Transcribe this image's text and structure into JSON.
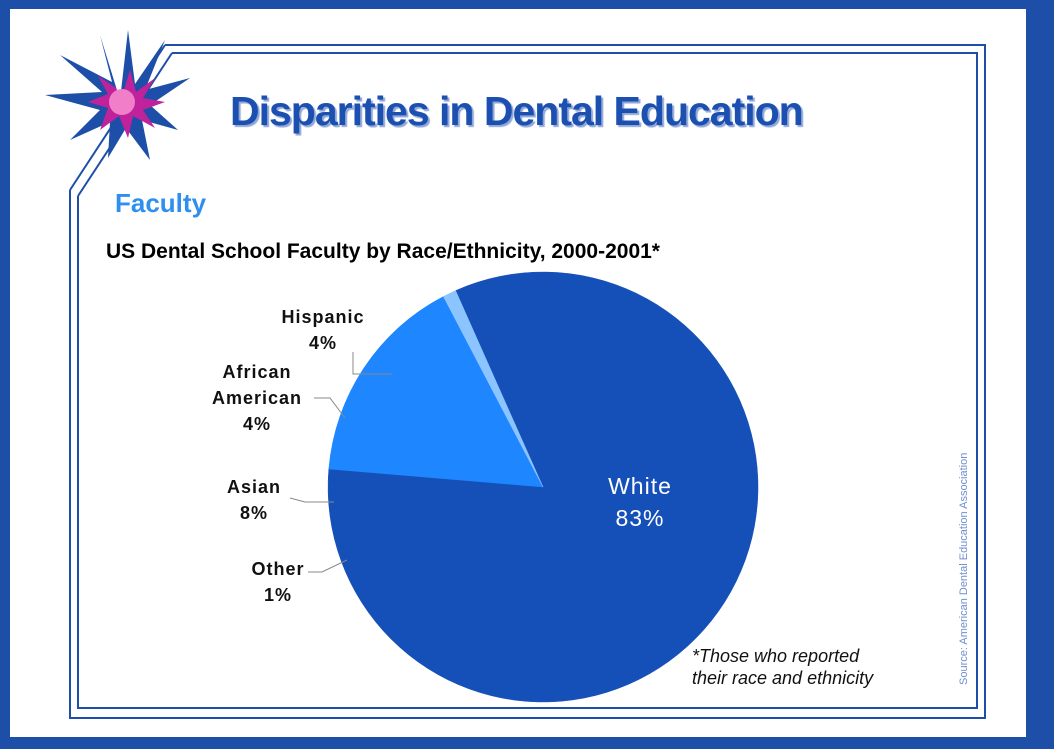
{
  "slide": {
    "title": "Disparities in Dental Education",
    "subtitle": "Faculty",
    "footnote_line1": "*Those who reported",
    "footnote_line2": "their race and ethnicity",
    "source": "Source: American Dental Education Association"
  },
  "colors": {
    "frame": "#1d4fa8",
    "title": "#1b4fb0",
    "subtitle": "#2f8ff0",
    "white_slice": "#1550b8",
    "asian_slice": "#1e86ff",
    "other_slice": "#8cc4ff"
  },
  "chart_data": {
    "type": "pie",
    "title": "US Dental School Faculty by Race/Ethnicity, 2000-2001*",
    "slices": [
      {
        "label": "White",
        "value": 83,
        "text": "83%",
        "color": "#1550b8"
      },
      {
        "label": "Hispanic",
        "value": 4,
        "text": "4%",
        "color": "#1e86ff"
      },
      {
        "label": "African American",
        "value": 4,
        "text": "4%",
        "color": "#1e86ff"
      },
      {
        "label": "Asian",
        "value": 8,
        "text": "8%",
        "color": "#1e86ff"
      },
      {
        "label": "Other",
        "value": 1,
        "text": "1%",
        "color": "#8cc4ff"
      }
    ],
    "labels": {
      "hispanic_name": "Hispanic",
      "hispanic_pct": "4%",
      "african_line1": "African",
      "african_line2": "American",
      "african_pct": "4%",
      "asian_name": "Asian",
      "asian_pct": "8%",
      "other_name": "Other",
      "other_pct": "1%",
      "white_name": "White",
      "white_pct": "83%"
    }
  }
}
